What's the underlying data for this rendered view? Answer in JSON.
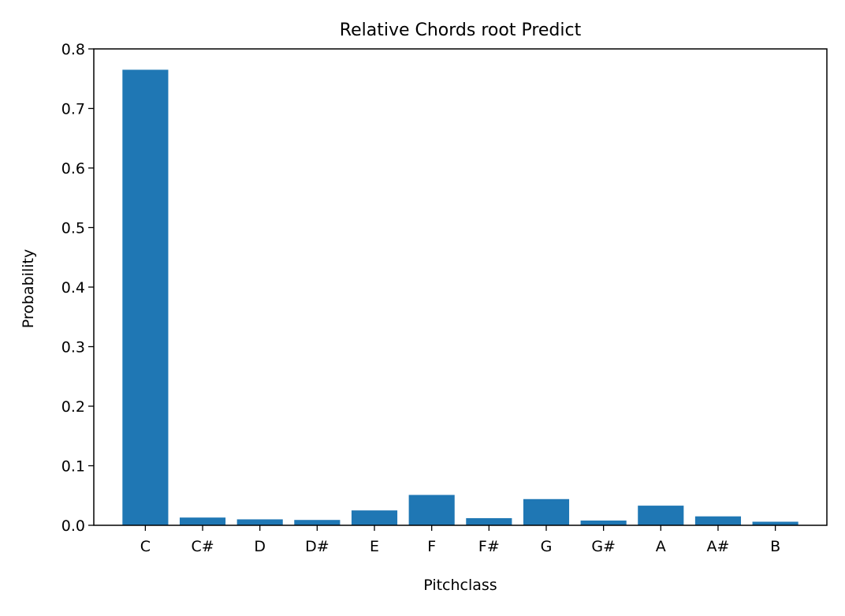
{
  "chart_data": {
    "type": "bar",
    "title": "Relative Chords root Predict",
    "xlabel": "Pitchclass",
    "ylabel": "Probability",
    "categories": [
      "C",
      "C#",
      "D",
      "D#",
      "E",
      "F",
      "F#",
      "G",
      "G#",
      "A",
      "A#",
      "B"
    ],
    "values": [
      0.765,
      0.013,
      0.01,
      0.009,
      0.025,
      0.051,
      0.012,
      0.044,
      0.008,
      0.033,
      0.015,
      0.006
    ],
    "ylim": [
      0,
      0.8
    ],
    "yticks": [
      0.0,
      0.1,
      0.2,
      0.3,
      0.4,
      0.5,
      0.6,
      0.7,
      0.8
    ],
    "ytick_labels": [
      "0.0",
      "0.1",
      "0.2",
      "0.3",
      "0.4",
      "0.5",
      "0.6",
      "0.7",
      "0.8"
    ],
    "bar_color": "#1f77b4",
    "grid": false,
    "legend": "none"
  }
}
